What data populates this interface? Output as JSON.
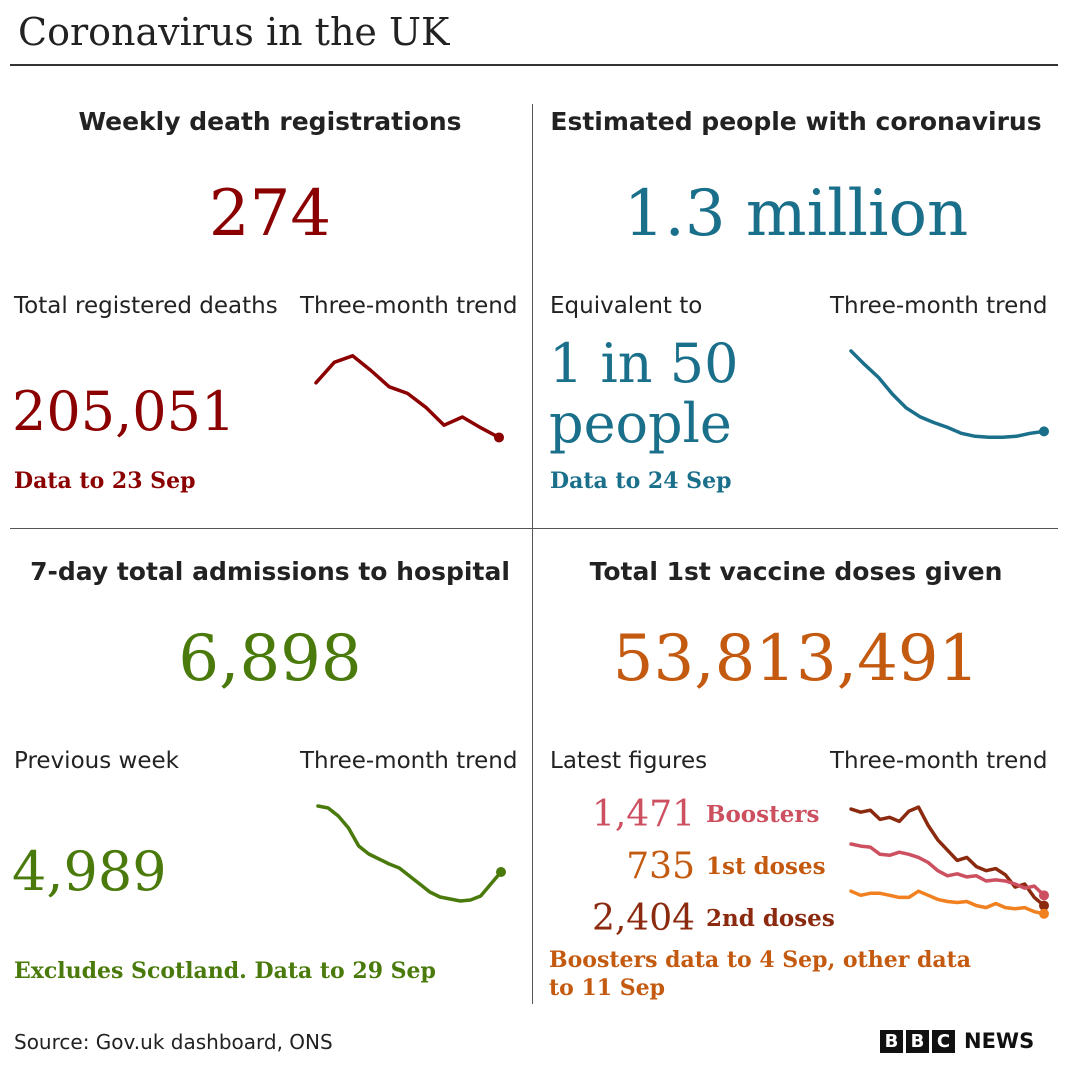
{
  "title": "Coronavirus in the UK",
  "colors": {
    "deaths": "#8b0000",
    "infections": "#1a6f8a",
    "hospital": "#4a7a0b",
    "vaccine": "#c45a10",
    "boosters": "#cc5060",
    "first_doses": "#f08020",
    "second_doses": "#8b2a0f"
  },
  "panels": {
    "deaths": {
      "title": "Weekly death registrations",
      "value": "274",
      "left_label": "Total registered deaths",
      "trend_label": "Three-month trend",
      "sub_value": "205,051",
      "note": "Data to 23 Sep"
    },
    "infections": {
      "title": "Estimated people with coronavirus",
      "value": "1.3 million",
      "left_label": "Equivalent to",
      "trend_label": "Three-month trend",
      "sub_value_line1": "1 in 50",
      "sub_value_line2": "people",
      "note": "Data to 24 Sep"
    },
    "hospital": {
      "title": "7-day total admissions to hospital",
      "value": "6,898",
      "left_label": "Previous week",
      "trend_label": "Three-month trend",
      "sub_value": "4,989",
      "note": "Excludes Scotland. Data to 29 Sep"
    },
    "vaccine": {
      "title": "Total 1st vaccine doses given",
      "value": "53,813,491",
      "left_label": "Latest figures",
      "trend_label": "Three-month trend",
      "latest": [
        {
          "value": "1,471",
          "label": "Boosters"
        },
        {
          "value": "735",
          "label": "1st doses"
        },
        {
          "value": "2,404",
          "label": "2nd doses"
        }
      ],
      "note_line1": "Boosters data to 4 Sep, other data",
      "note_line2": "to 11 Sep"
    }
  },
  "source": "Source: Gov.uk dashboard, ONS",
  "logo": {
    "letters": [
      "B",
      "B",
      "C"
    ],
    "news": "NEWS"
  },
  "chart_data": [
    {
      "type": "line",
      "name": "deaths-trend",
      "series": [
        {
          "values": [
            0.55,
            0.8,
            0.88,
            0.7,
            0.5,
            0.42,
            0.25,
            0.03,
            0.13,
            0.0,
            -0.12
          ]
        }
      ],
      "ylim": [
        -0.2,
        1.0
      ]
    },
    {
      "type": "line",
      "name": "infections-trend",
      "series": [
        {
          "values": [
            1.0,
            0.86,
            0.73,
            0.56,
            0.42,
            0.33,
            0.27,
            0.22,
            0.16,
            0.13,
            0.12,
            0.12,
            0.13,
            0.16,
            0.18
          ]
        }
      ],
      "ylim": [
        0,
        1.0
      ]
    },
    {
      "type": "line",
      "name": "hospital-trend",
      "series": [
        {
          "values": [
            1.0,
            0.98,
            0.9,
            0.78,
            0.6,
            0.52,
            0.47,
            0.42,
            0.38,
            0.3,
            0.22,
            0.14,
            0.09,
            0.07,
            0.05,
            0.06,
            0.1,
            0.22,
            0.34
          ]
        }
      ],
      "ylim": [
        0,
        1.0
      ]
    },
    {
      "type": "line",
      "name": "vaccine-trend",
      "series": [
        {
          "values": [
            1.0,
            0.97,
            0.99,
            0.9,
            0.92,
            0.88,
            0.98,
            1.02,
            0.84,
            0.7,
            0.6,
            0.5,
            0.53,
            0.44,
            0.4,
            0.42,
            0.36,
            0.24,
            0.27,
            0.14,
            0.06
          ]
        },
        {
          "values": [
            0.66,
            0.64,
            0.63,
            0.56,
            0.55,
            0.58,
            0.56,
            0.53,
            0.48,
            0.4,
            0.35,
            0.37,
            0.34,
            0.35,
            0.3,
            0.31,
            0.3,
            0.27,
            0.23,
            0.25,
            0.16
          ]
        },
        {
          "values": [
            0.2,
            0.16,
            0.18,
            0.18,
            0.16,
            0.14,
            0.14,
            0.2,
            0.16,
            0.12,
            0.1,
            0.09,
            0.1,
            0.06,
            0.04,
            0.08,
            0.04,
            0.03,
            0.04,
            0.0,
            -0.02
          ]
        }
      ],
      "ylim": [
        -0.1,
        1.05
      ]
    }
  ]
}
